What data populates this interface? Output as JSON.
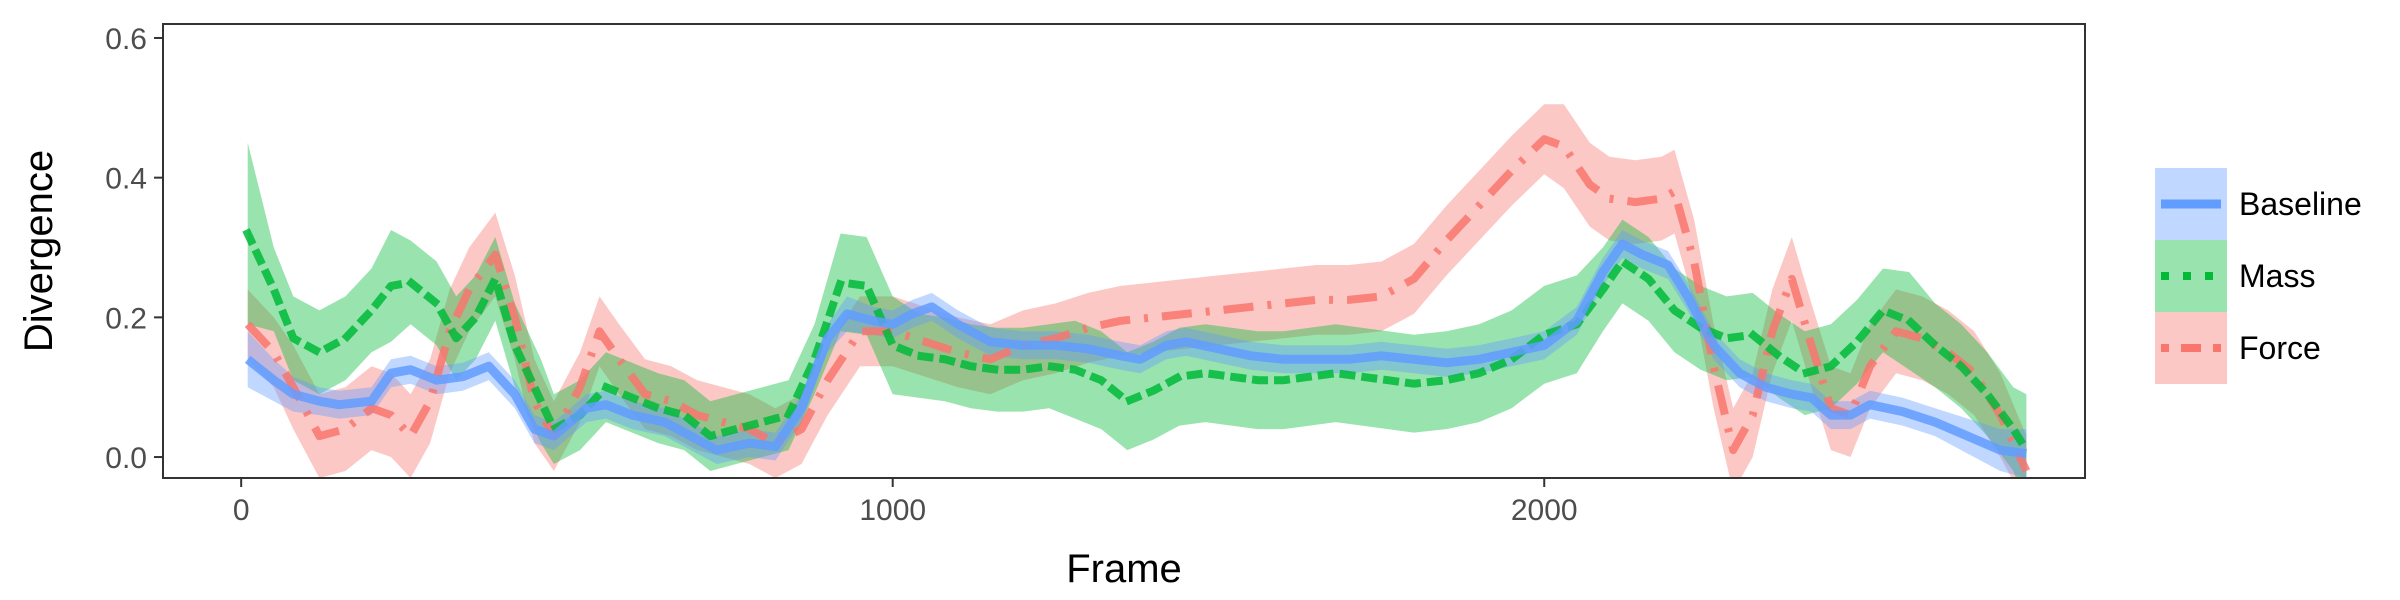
{
  "chart_data": {
    "type": "line",
    "title": "",
    "xlabel": "Frame",
    "ylabel": "Divergence",
    "xlim": [
      -120,
      2830
    ],
    "ylim": [
      -0.03,
      0.62
    ],
    "x_ticks": [
      0,
      1000,
      2000
    ],
    "x_tick_labels": [
      "0",
      "1000",
      "2000"
    ],
    "y_ticks": [
      0.0,
      0.2,
      0.4,
      0.6
    ],
    "y_tick_labels": [
      "0.0",
      "0.2",
      "0.4",
      "0.6"
    ],
    "grid": false,
    "legend_position": "right",
    "series": [
      {
        "name": "Baseline",
        "color": "#619CFF",
        "line_style": "solid",
        "points": [
          [
            10,
            0.14
          ],
          [
            50,
            0.11
          ],
          [
            80,
            0.09
          ],
          [
            120,
            0.08
          ],
          [
            150,
            0.075
          ],
          [
            200,
            0.08
          ],
          [
            230,
            0.12
          ],
          [
            260,
            0.125
          ],
          [
            300,
            0.11
          ],
          [
            340,
            0.115
          ],
          [
            380,
            0.13
          ],
          [
            420,
            0.09
          ],
          [
            450,
            0.04
          ],
          [
            480,
            0.03
          ],
          [
            530,
            0.07
          ],
          [
            560,
            0.075
          ],
          [
            600,
            0.06
          ],
          [
            650,
            0.05
          ],
          [
            700,
            0.025
          ],
          [
            730,
            0.01
          ],
          [
            780,
            0.02
          ],
          [
            820,
            0.015
          ],
          [
            860,
            0.07
          ],
          [
            900,
            0.17
          ],
          [
            930,
            0.205
          ],
          [
            970,
            0.195
          ],
          [
            1000,
            0.19
          ],
          [
            1030,
            0.205
          ],
          [
            1060,
            0.215
          ],
          [
            1100,
            0.19
          ],
          [
            1150,
            0.165
          ],
          [
            1200,
            0.16
          ],
          [
            1250,
            0.16
          ],
          [
            1300,
            0.155
          ],
          [
            1350,
            0.145
          ],
          [
            1380,
            0.14
          ],
          [
            1420,
            0.16
          ],
          [
            1450,
            0.165
          ],
          [
            1500,
            0.155
          ],
          [
            1550,
            0.145
          ],
          [
            1600,
            0.14
          ],
          [
            1650,
            0.14
          ],
          [
            1700,
            0.14
          ],
          [
            1750,
            0.145
          ],
          [
            1800,
            0.14
          ],
          [
            1850,
            0.135
          ],
          [
            1900,
            0.14
          ],
          [
            1950,
            0.15
          ],
          [
            2000,
            0.16
          ],
          [
            2050,
            0.195
          ],
          [
            2090,
            0.265
          ],
          [
            2120,
            0.305
          ],
          [
            2150,
            0.29
          ],
          [
            2190,
            0.275
          ],
          [
            2220,
            0.23
          ],
          [
            2260,
            0.16
          ],
          [
            2300,
            0.12
          ],
          [
            2340,
            0.1
          ],
          [
            2380,
            0.09
          ],
          [
            2410,
            0.085
          ],
          [
            2440,
            0.06
          ],
          [
            2470,
            0.06
          ],
          [
            2500,
            0.075
          ],
          [
            2550,
            0.065
          ],
          [
            2600,
            0.05
          ],
          [
            2650,
            0.03
          ],
          [
            2700,
            0.01
          ],
          [
            2740,
            0.005
          ]
        ],
        "band_halfwidth": [
          0.04,
          0.03,
          0.025,
          0.02,
          0.02,
          0.02,
          0.02,
          0.02,
          0.02,
          0.02,
          0.02,
          0.02,
          0.02,
          0.02,
          0.02,
          0.02,
          0.02,
          0.02,
          0.02,
          0.02,
          0.02,
          0.02,
          0.02,
          0.02,
          0.025,
          0.02,
          0.02,
          0.02,
          0.02,
          0.02,
          0.02,
          0.02,
          0.02,
          0.02,
          0.02,
          0.02,
          0.02,
          0.02,
          0.02,
          0.02,
          0.02,
          0.02,
          0.02,
          0.02,
          0.02,
          0.02,
          0.02,
          0.02,
          0.02,
          0.02,
          0.02,
          0.02,
          0.02,
          0.02,
          0.02,
          0.02,
          0.02,
          0.02,
          0.02,
          0.02,
          0.02,
          0.02,
          0.02,
          0.02,
          0.02,
          0.025,
          0.03,
          0.035
        ]
      },
      {
        "name": "Mass",
        "color": "#00BA38",
        "line_style": "dotted",
        "points": [
          [
            10,
            0.32
          ],
          [
            50,
            0.24
          ],
          [
            80,
            0.17
          ],
          [
            120,
            0.15
          ],
          [
            160,
            0.17
          ],
          [
            200,
            0.21
          ],
          [
            230,
            0.245
          ],
          [
            260,
            0.25
          ],
          [
            300,
            0.22
          ],
          [
            330,
            0.17
          ],
          [
            360,
            0.2
          ],
          [
            390,
            0.255
          ],
          [
            420,
            0.16
          ],
          [
            460,
            0.08
          ],
          [
            480,
            0.04
          ],
          [
            520,
            0.06
          ],
          [
            560,
            0.1
          ],
          [
            600,
            0.085
          ],
          [
            640,
            0.07
          ],
          [
            680,
            0.06
          ],
          [
            720,
            0.03
          ],
          [
            760,
            0.04
          ],
          [
            800,
            0.05
          ],
          [
            840,
            0.06
          ],
          [
            880,
            0.14
          ],
          [
            920,
            0.25
          ],
          [
            960,
            0.245
          ],
          [
            1000,
            0.16
          ],
          [
            1040,
            0.145
          ],
          [
            1080,
            0.14
          ],
          [
            1120,
            0.13
          ],
          [
            1160,
            0.125
          ],
          [
            1200,
            0.125
          ],
          [
            1240,
            0.13
          ],
          [
            1280,
            0.125
          ],
          [
            1320,
            0.11
          ],
          [
            1360,
            0.08
          ],
          [
            1400,
            0.095
          ],
          [
            1440,
            0.115
          ],
          [
            1480,
            0.12
          ],
          [
            1520,
            0.115
          ],
          [
            1560,
            0.11
          ],
          [
            1600,
            0.11
          ],
          [
            1640,
            0.115
          ],
          [
            1680,
            0.12
          ],
          [
            1720,
            0.115
          ],
          [
            1760,
            0.11
          ],
          [
            1800,
            0.105
          ],
          [
            1850,
            0.11
          ],
          [
            1900,
            0.12
          ],
          [
            1950,
            0.14
          ],
          [
            2000,
            0.175
          ],
          [
            2050,
            0.19
          ],
          [
            2090,
            0.24
          ],
          [
            2120,
            0.28
          ],
          [
            2160,
            0.255
          ],
          [
            2200,
            0.21
          ],
          [
            2240,
            0.185
          ],
          [
            2280,
            0.17
          ],
          [
            2320,
            0.175
          ],
          [
            2360,
            0.145
          ],
          [
            2400,
            0.12
          ],
          [
            2440,
            0.13
          ],
          [
            2480,
            0.165
          ],
          [
            2520,
            0.21
          ],
          [
            2560,
            0.195
          ],
          [
            2600,
            0.16
          ],
          [
            2640,
            0.13
          ],
          [
            2680,
            0.09
          ],
          [
            2720,
            0.04
          ],
          [
            2740,
            0.01
          ]
        ],
        "band_halfwidth": [
          0.13,
          0.06,
          0.06,
          0.06,
          0.06,
          0.06,
          0.08,
          0.06,
          0.06,
          0.06,
          0.06,
          0.06,
          0.06,
          0.06,
          0.05,
          0.05,
          0.05,
          0.05,
          0.05,
          0.05,
          0.05,
          0.05,
          0.05,
          0.05,
          0.05,
          0.07,
          0.07,
          0.07,
          0.06,
          0.06,
          0.06,
          0.06,
          0.06,
          0.06,
          0.07,
          0.07,
          0.07,
          0.07,
          0.07,
          0.07,
          0.07,
          0.07,
          0.07,
          0.07,
          0.07,
          0.07,
          0.07,
          0.07,
          0.07,
          0.07,
          0.07,
          0.07,
          0.07,
          0.06,
          0.06,
          0.06,
          0.06,
          0.06,
          0.06,
          0.06,
          0.06,
          0.06,
          0.06,
          0.06,
          0.06,
          0.07,
          0.06,
          0.06,
          0.06,
          0.06,
          0.08
        ]
      },
      {
        "name": "Force",
        "color": "#F8766D",
        "line_style": "dotdash",
        "points": [
          [
            10,
            0.19
          ],
          [
            50,
            0.15
          ],
          [
            80,
            0.1
          ],
          [
            120,
            0.03
          ],
          [
            160,
            0.04
          ],
          [
            200,
            0.07
          ],
          [
            230,
            0.06
          ],
          [
            260,
            0.03
          ],
          [
            290,
            0.08
          ],
          [
            320,
            0.18
          ],
          [
            350,
            0.24
          ],
          [
            390,
            0.29
          ],
          [
            420,
            0.2
          ],
          [
            450,
            0.08
          ],
          [
            480,
            0.03
          ],
          [
            520,
            0.1
          ],
          [
            550,
            0.18
          ],
          [
            580,
            0.14
          ],
          [
            620,
            0.09
          ],
          [
            660,
            0.08
          ],
          [
            700,
            0.06
          ],
          [
            740,
            0.05
          ],
          [
            780,
            0.04
          ],
          [
            820,
            0.02
          ],
          [
            860,
            0.04
          ],
          [
            900,
            0.11
          ],
          [
            950,
            0.18
          ],
          [
            1000,
            0.18
          ],
          [
            1050,
            0.165
          ],
          [
            1100,
            0.15
          ],
          [
            1150,
            0.14
          ],
          [
            1200,
            0.16
          ],
          [
            1250,
            0.17
          ],
          [
            1300,
            0.185
          ],
          [
            1350,
            0.195
          ],
          [
            1400,
            0.2
          ],
          [
            1450,
            0.205
          ],
          [
            1500,
            0.21
          ],
          [
            1550,
            0.215
          ],
          [
            1600,
            0.22
          ],
          [
            1650,
            0.225
          ],
          [
            1700,
            0.225
          ],
          [
            1750,
            0.23
          ],
          [
            1800,
            0.255
          ],
          [
            1850,
            0.31
          ],
          [
            1900,
            0.36
          ],
          [
            1950,
            0.41
          ],
          [
            2000,
            0.455
          ],
          [
            2030,
            0.445
          ],
          [
            2070,
            0.39
          ],
          [
            2100,
            0.37
          ],
          [
            2140,
            0.365
          ],
          [
            2180,
            0.37
          ],
          [
            2200,
            0.38
          ],
          [
            2230,
            0.28
          ],
          [
            2260,
            0.13
          ],
          [
            2290,
            0.01
          ],
          [
            2320,
            0.06
          ],
          [
            2350,
            0.18
          ],
          [
            2380,
            0.255
          ],
          [
            2410,
            0.16
          ],
          [
            2440,
            0.07
          ],
          [
            2470,
            0.06
          ],
          [
            2500,
            0.13
          ],
          [
            2540,
            0.18
          ],
          [
            2580,
            0.17
          ],
          [
            2620,
            0.15
          ],
          [
            2660,
            0.12
          ],
          [
            2700,
            0.06
          ],
          [
            2740,
            -0.02
          ]
        ],
        "band_halfwidth": [
          0.05,
          0.05,
          0.06,
          0.06,
          0.06,
          0.06,
          0.06,
          0.06,
          0.06,
          0.06,
          0.06,
          0.06,
          0.06,
          0.06,
          0.05,
          0.05,
          0.05,
          0.05,
          0.05,
          0.05,
          0.05,
          0.05,
          0.05,
          0.05,
          0.05,
          0.05,
          0.05,
          0.05,
          0.05,
          0.05,
          0.05,
          0.05,
          0.05,
          0.05,
          0.05,
          0.05,
          0.05,
          0.05,
          0.05,
          0.05,
          0.05,
          0.05,
          0.05,
          0.05,
          0.05,
          0.05,
          0.05,
          0.05,
          0.06,
          0.06,
          0.06,
          0.06,
          0.06,
          0.06,
          0.06,
          0.06,
          0.06,
          0.06,
          0.06,
          0.06,
          0.06,
          0.06,
          0.06,
          0.06,
          0.06,
          0.06,
          0.06,
          0.06,
          0.06,
          0.05
        ]
      }
    ]
  }
}
